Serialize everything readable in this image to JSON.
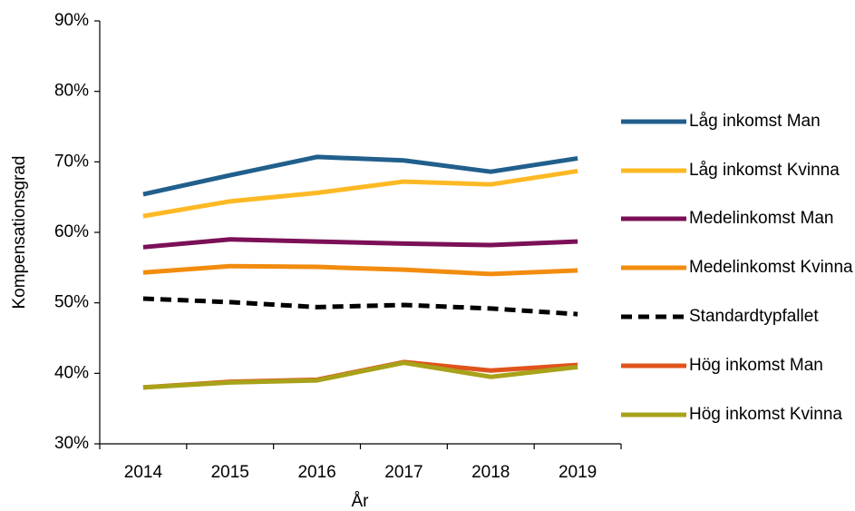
{
  "chart_data": {
    "type": "line",
    "x_label": "År",
    "y_label": "Kompensationsgrad",
    "categories": [
      "2014",
      "2015",
      "2016",
      "2017",
      "2018",
      "2019"
    ],
    "ylim": [
      30,
      90
    ],
    "yticks": [
      {
        "value": 30,
        "label": "30%"
      },
      {
        "value": 40,
        "label": "40%"
      },
      {
        "value": 50,
        "label": "50%"
      },
      {
        "value": 60,
        "label": "60%"
      },
      {
        "value": 70,
        "label": "70%"
      },
      {
        "value": 80,
        "label": "80%"
      },
      {
        "value": 90,
        "label": "90%"
      }
    ],
    "grid": false,
    "legend": "right",
    "series": [
      {
        "name": "Låg inkomst Man",
        "color": "#215f8c",
        "values": [
          65.4,
          68.1,
          70.7,
          70.2,
          68.6,
          70.5
        ]
      },
      {
        "name": "Låg inkomst Kvinna",
        "color": "#fdb924",
        "values": [
          62.3,
          64.4,
          65.6,
          67.2,
          66.8,
          68.7
        ]
      },
      {
        "name": "Medelinkomst Man",
        "color": "#7b1057",
        "values": [
          57.9,
          59.0,
          58.7,
          58.4,
          58.2,
          58.7
        ]
      },
      {
        "name": "Medelinkomst Kvinna",
        "color": "#f28c0f",
        "values": [
          54.3,
          55.2,
          55.1,
          54.7,
          54.1,
          54.6
        ]
      },
      {
        "name": "Standardtypfallet",
        "color": "#000000",
        "dashed": true,
        "values": [
          50.6,
          50.1,
          49.4,
          49.7,
          49.2,
          48.4
        ]
      },
      {
        "name": "Hög inkomst Man",
        "color": "#e0531b",
        "values": [
          38.0,
          38.8,
          39.1,
          41.6,
          40.4,
          41.2
        ]
      },
      {
        "name": "Hög inkomst Kvinna",
        "color": "#a8a21a",
        "values": [
          38.0,
          38.7,
          39.0,
          41.5,
          39.5,
          40.9
        ]
      }
    ]
  }
}
